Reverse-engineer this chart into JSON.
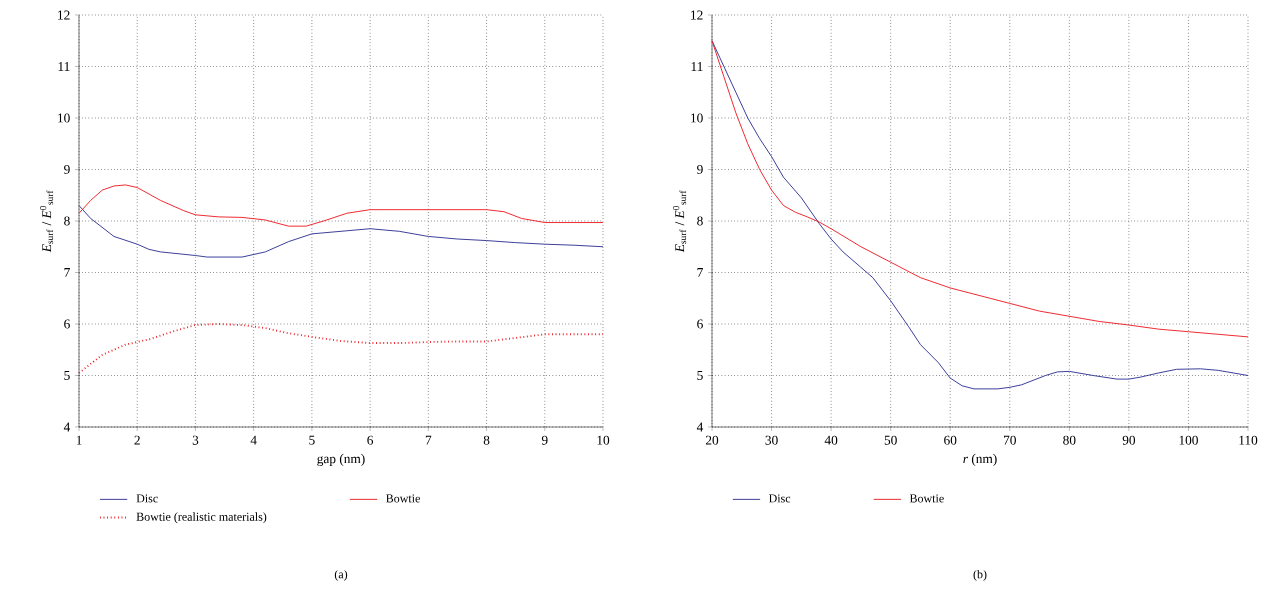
{
  "chart_data": [
    {
      "type": "line",
      "xlabel": "gap (nm)",
      "ylabel": "*E*$_{surf}$ / *E*$^{0}$$_{surf}$",
      "xlim": [
        1,
        10
      ],
      "ylim": [
        4,
        12
      ],
      "xticks": [
        1,
        2,
        3,
        4,
        5,
        6,
        7,
        8,
        9,
        10
      ],
      "yticks": [
        4,
        5,
        6,
        7,
        8,
        9,
        10,
        11,
        12
      ],
      "grid": true,
      "legend": "bottom",
      "annotations": [
        "(a)"
      ],
      "series": [
        {
          "name": "Disc",
          "color": "#2e3192",
          "x": [
            1,
            1.2,
            1.6,
            2,
            2.2,
            2.4,
            3,
            3.2,
            3.8,
            4.2,
            4.6,
            5,
            5.5,
            6,
            6.5,
            7,
            7.5,
            8,
            8.5,
            9,
            9.5,
            10
          ],
          "values": [
            8.3,
            8.05,
            7.7,
            7.55,
            7.45,
            7.4,
            7.33,
            7.3,
            7.3,
            7.4,
            7.6,
            7.75,
            7.8,
            7.85,
            7.8,
            7.7,
            7.65,
            7.62,
            7.58,
            7.55,
            7.53,
            7.5
          ]
        },
        {
          "name": "Bowtie",
          "color": "#ed1c24",
          "x": [
            1,
            1.2,
            1.4,
            1.6,
            1.8,
            2,
            2.4,
            2.8,
            3,
            3.4,
            3.8,
            4.2,
            4.6,
            4.9,
            5.2,
            5.6,
            6,
            7,
            8,
            8.3,
            8.6,
            9,
            10
          ],
          "values": [
            8.15,
            8.4,
            8.6,
            8.68,
            8.7,
            8.65,
            8.4,
            8.2,
            8.12,
            8.08,
            8.07,
            8.02,
            7.9,
            7.9,
            8.0,
            8.15,
            8.22,
            8.22,
            8.22,
            8.18,
            8.05,
            7.97,
            7.97
          ]
        },
        {
          "name": "Bowtie (realistic materials)",
          "color": "#ed1c24",
          "line_style": "dotted",
          "x": [
            1,
            1.4,
            1.8,
            2.2,
            2.6,
            3,
            3.4,
            3.8,
            4.2,
            4.6,
            5,
            5.5,
            6,
            6.5,
            7,
            7.5,
            8,
            8.5,
            9,
            9.5,
            10
          ],
          "values": [
            5.05,
            5.4,
            5.6,
            5.7,
            5.85,
            5.98,
            6.0,
            5.98,
            5.92,
            5.82,
            5.75,
            5.67,
            5.63,
            5.63,
            5.65,
            5.66,
            5.66,
            5.73,
            5.8,
            5.8,
            5.8
          ]
        }
      ]
    },
    {
      "type": "line",
      "xlabel": "*r* (nm)",
      "ylabel": "*E*$_{surf}$ / *E*$^{0}$$_{surf}$",
      "xlim": [
        20,
        110
      ],
      "ylim": [
        4,
        12
      ],
      "xticks": [
        20,
        30,
        40,
        50,
        60,
        70,
        80,
        90,
        100,
        110
      ],
      "yticks": [
        4,
        5,
        6,
        7,
        8,
        9,
        10,
        11,
        12
      ],
      "grid": true,
      "legend": "bottom",
      "annotations": [
        "(b)"
      ],
      "series": [
        {
          "name": "Disc",
          "color": "#2e3192",
          "x": [
            20,
            22,
            24,
            26,
            28,
            30,
            32,
            35,
            38,
            40,
            42,
            45,
            47,
            50,
            53,
            55,
            58,
            60,
            62,
            64,
            68,
            70,
            72,
            76,
            78,
            80,
            84,
            88,
            90,
            92,
            95,
            98,
            102,
            105,
            110
          ],
          "values": [
            11.5,
            11.0,
            10.5,
            10.0,
            9.6,
            9.25,
            8.85,
            8.45,
            7.95,
            7.65,
            7.4,
            7.1,
            6.9,
            6.45,
            5.95,
            5.6,
            5.25,
            4.95,
            4.8,
            4.74,
            4.74,
            4.77,
            4.82,
            5.0,
            5.07,
            5.08,
            5.0,
            4.93,
            4.93,
            4.97,
            5.05,
            5.12,
            5.13,
            5.1,
            5.0
          ]
        },
        {
          "name": "Bowtie",
          "color": "#ed1c24",
          "x": [
            20,
            22,
            24,
            26,
            28,
            30,
            32,
            34,
            36,
            38,
            40,
            45,
            50,
            55,
            60,
            65,
            70,
            75,
            80,
            85,
            90,
            95,
            100,
            105,
            110
          ],
          "values": [
            11.5,
            10.8,
            10.1,
            9.5,
            9.0,
            8.6,
            8.3,
            8.17,
            8.08,
            7.98,
            7.85,
            7.5,
            7.2,
            6.9,
            6.7,
            6.55,
            6.4,
            6.25,
            6.15,
            6.05,
            5.98,
            5.9,
            5.85,
            5.8,
            5.75
          ]
        }
      ]
    }
  ]
}
